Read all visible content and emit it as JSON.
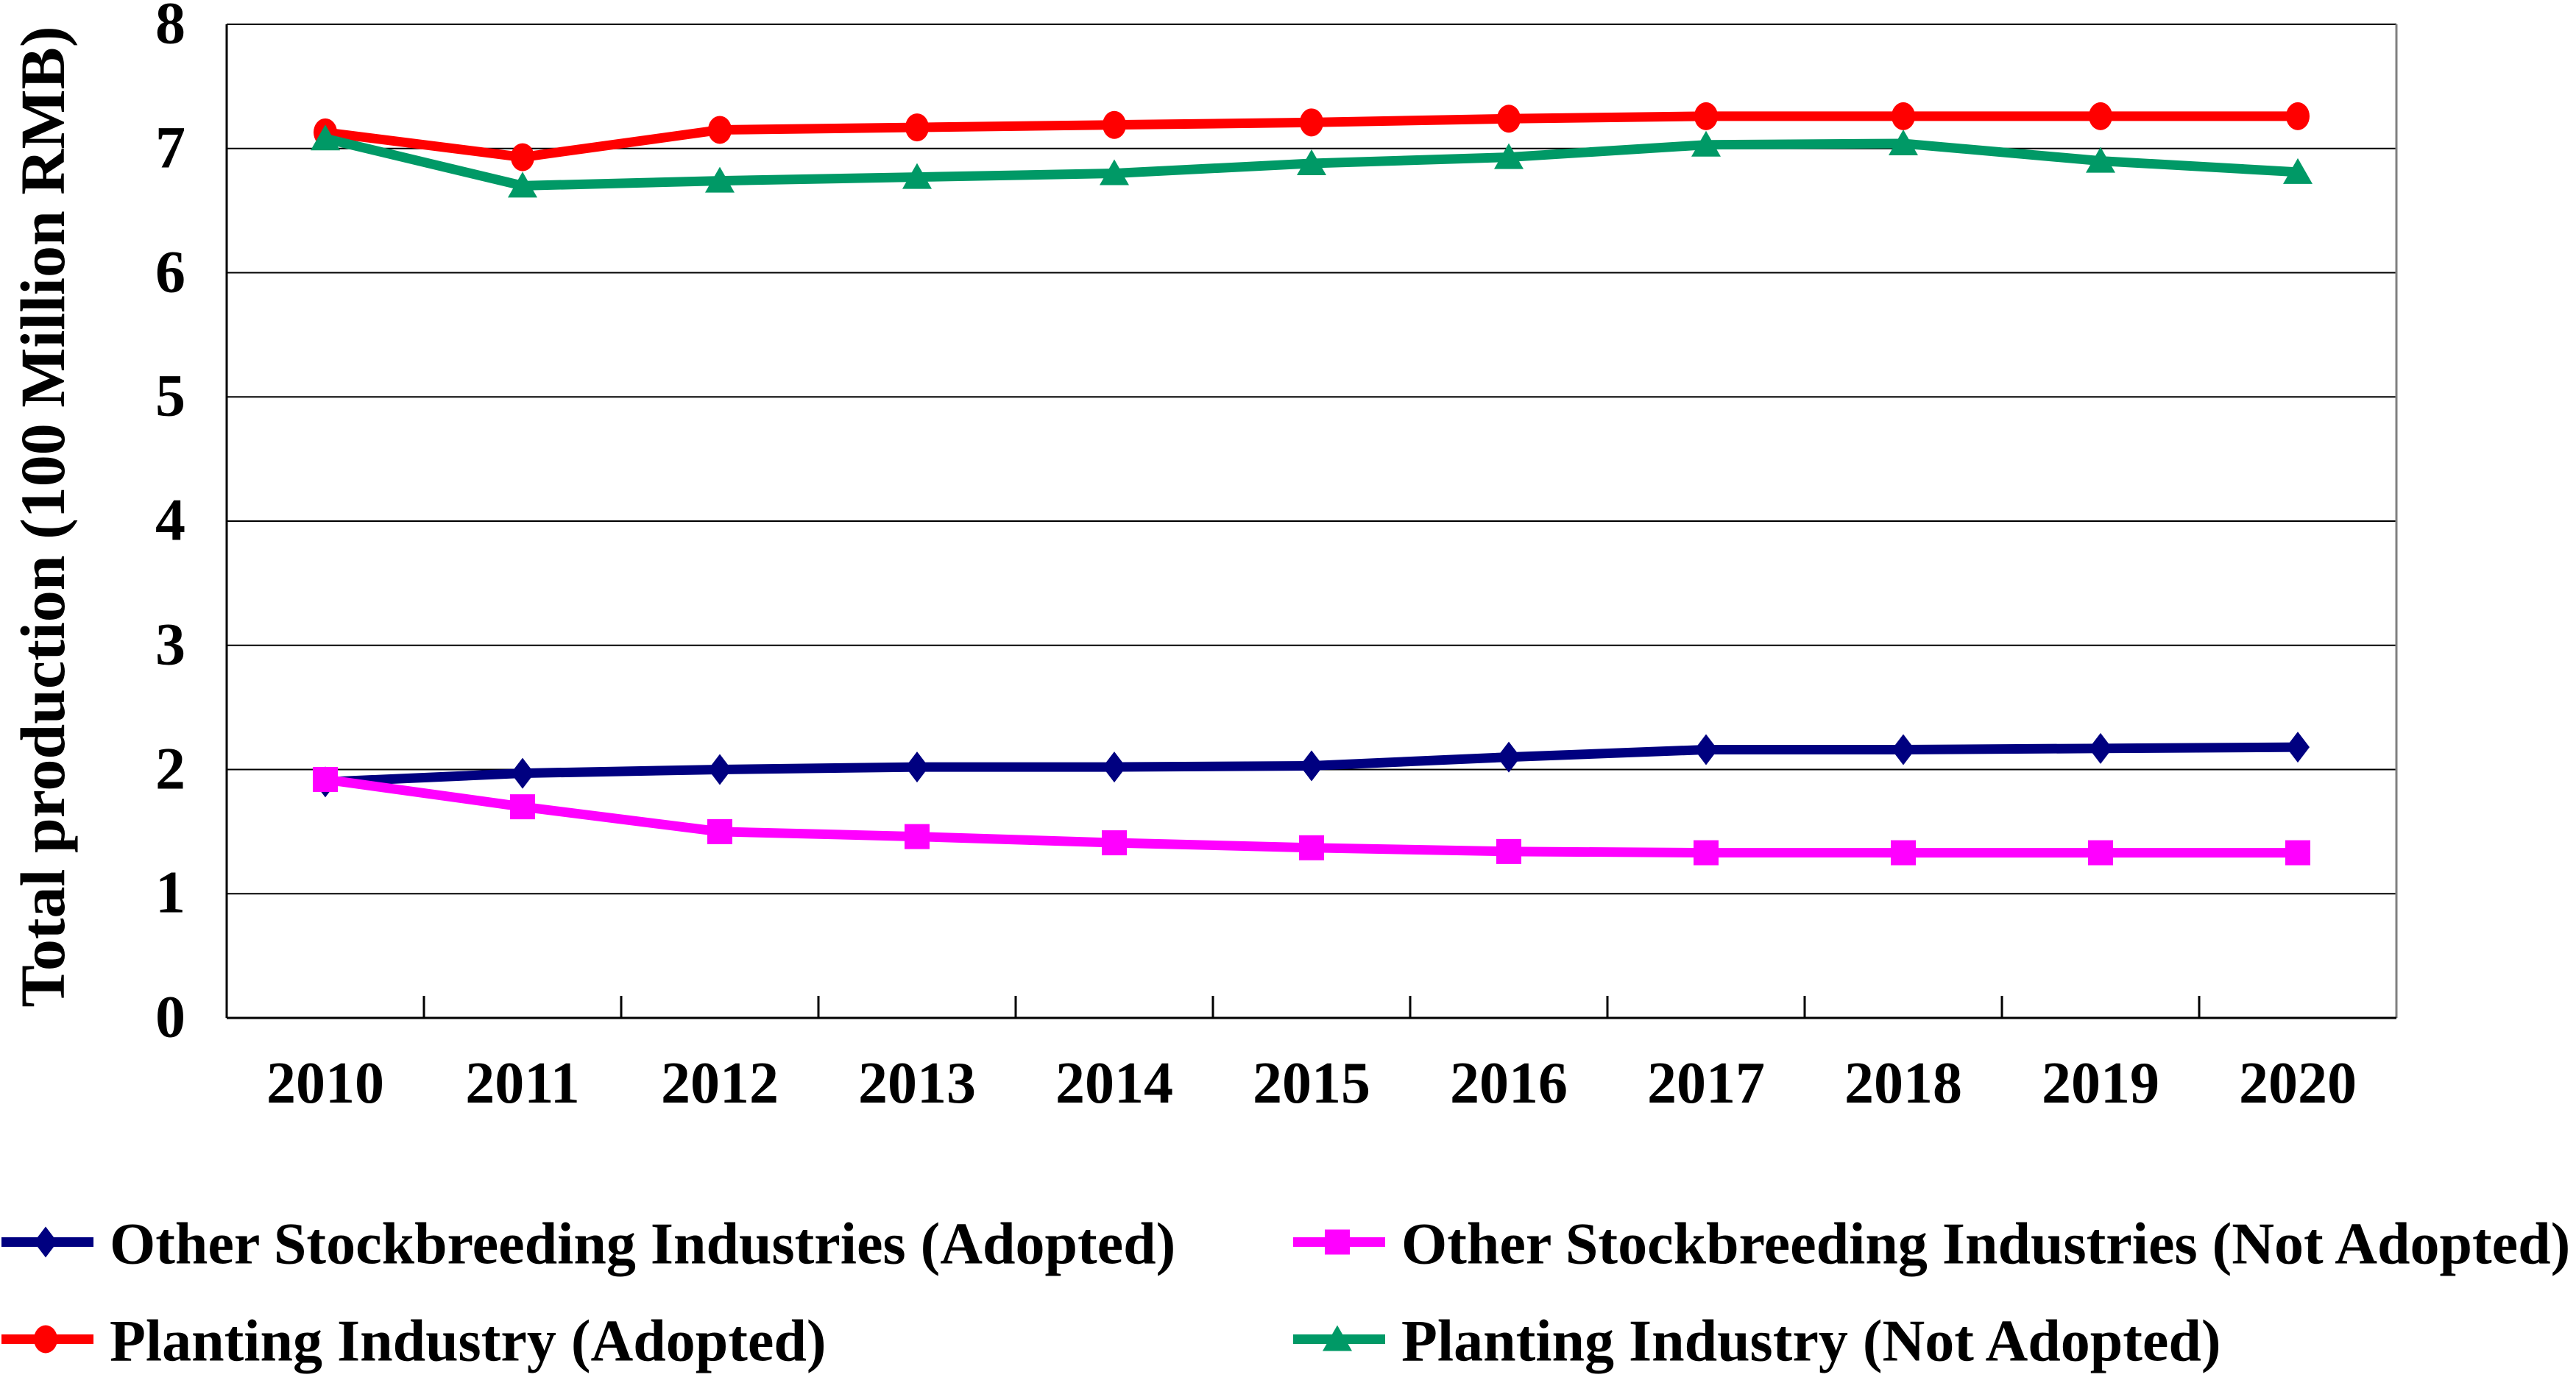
{
  "chart_data": {
    "type": "line",
    "title": "",
    "xlabel": "",
    "ylabel": "Total production (100 Million RMB)",
    "x_categories": [
      "2010",
      "2011",
      "2012",
      "2013",
      "2014",
      "2015",
      "2016",
      "2017",
      "2018",
      "2019",
      "2020"
    ],
    "ylim": [
      0,
      8
    ],
    "yticks": [
      "0",
      "1",
      "2",
      "3",
      "4",
      "5",
      "6",
      "7",
      "8"
    ],
    "grid": "horizontal gridlines on, black",
    "legend_position": "bottom, two columns",
    "series": [
      {
        "name": "Other Stockbreeding Industries (Adopted)",
        "marker": "diamond",
        "color": "#000080",
        "values": [
          1.9,
          1.97,
          2.0,
          2.02,
          2.02,
          2.03,
          2.1,
          2.16,
          2.16,
          2.17,
          2.18
        ]
      },
      {
        "name": "Other Stockbreeding Industries (Not Adopted)",
        "marker": "square",
        "color": "#FF00FF",
        "values": [
          1.92,
          1.7,
          1.5,
          1.46,
          1.41,
          1.37,
          1.34,
          1.33,
          1.33,
          1.33,
          1.33
        ]
      },
      {
        "name": "Planting Industry (Adopted)",
        "marker": "circle",
        "color": "#FF0000",
        "values": [
          7.13,
          6.93,
          7.15,
          7.17,
          7.19,
          7.21,
          7.24,
          7.26,
          7.26,
          7.26,
          7.26
        ]
      },
      {
        "name": "Planting Industry (Not Adopted)",
        "marker": "triangle",
        "color": "#009966",
        "values": [
          7.08,
          6.7,
          6.74,
          6.77,
          6.8,
          6.88,
          6.93,
          7.03,
          7.04,
          6.9,
          6.81
        ]
      }
    ],
    "legend_columns": {
      "left": [
        0,
        2
      ],
      "right": [
        1,
        3
      ]
    },
    "axis_color": "#000000",
    "plot_right_border_color": "#808080"
  }
}
